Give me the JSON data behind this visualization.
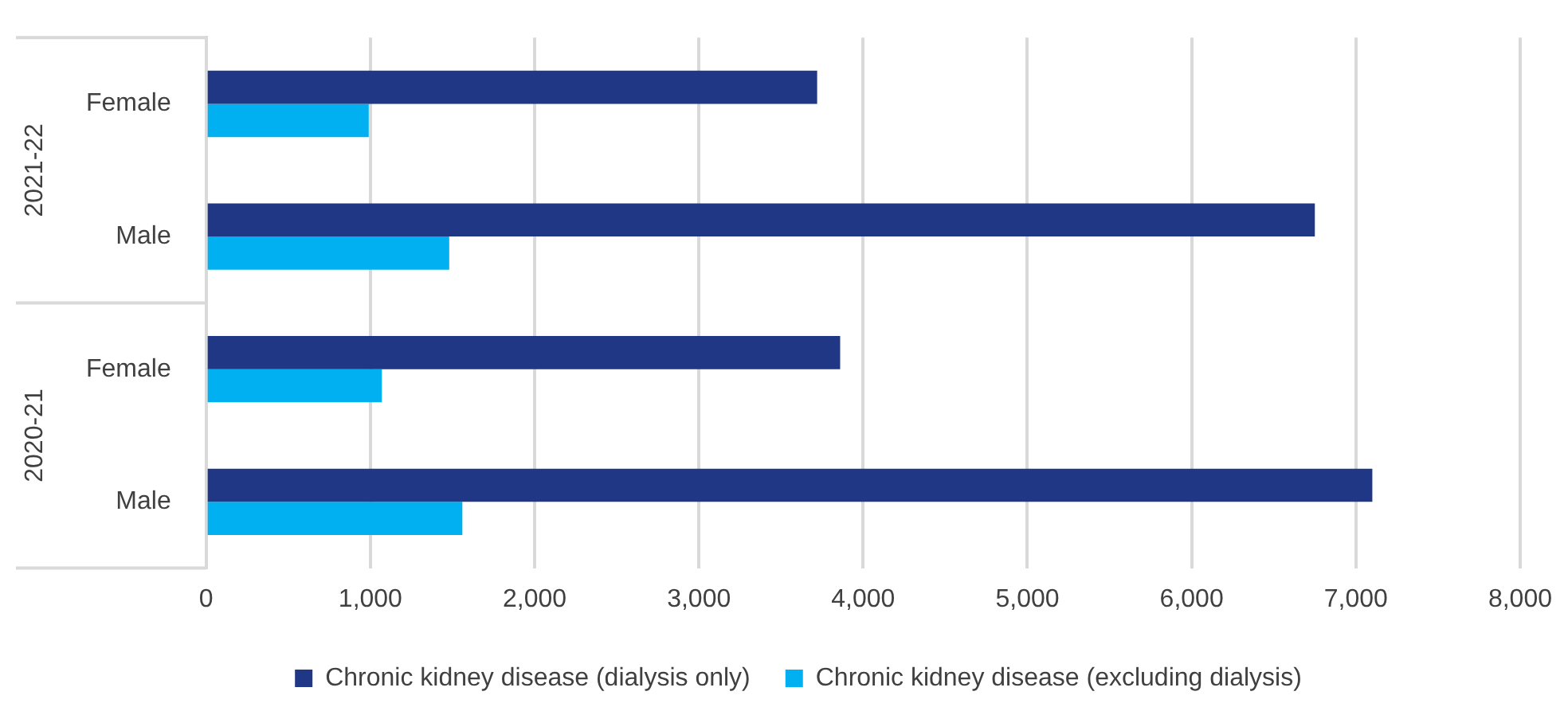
{
  "chart_data": {
    "type": "bar",
    "orientation": "horizontal",
    "categories": [
      "Female",
      "Male",
      "Female",
      "Male"
    ],
    "series": [
      {
        "name": "Chronic kidney disease (dialysis only)",
        "color": "#1f3784",
        "values": [
          3720,
          6750,
          3860,
          7100
        ]
      },
      {
        "name": "Chronic kidney disease (excluding dialysis)",
        "color": "#00b0f0",
        "values": [
          990,
          1480,
          1070,
          1560
        ]
      }
    ],
    "xlim": [
      0,
      8000
    ],
    "xticks": [
      {
        "value": 0,
        "label": "0"
      },
      {
        "value": 1000,
        "label": "1,000"
      },
      {
        "value": 2000,
        "label": "2,000"
      },
      {
        "value": 3000,
        "label": "3,000"
      },
      {
        "value": 4000,
        "label": "4,000"
      },
      {
        "value": 5000,
        "label": "5,000"
      },
      {
        "value": 6000,
        "label": "6,000"
      },
      {
        "value": 7000,
        "label": "7,000"
      },
      {
        "value": 8000,
        "label": "8,000"
      }
    ],
    "grid": "x",
    "legend": "bottom",
    "annotations": [
      "2021-22",
      "2020-21"
    ]
  }
}
